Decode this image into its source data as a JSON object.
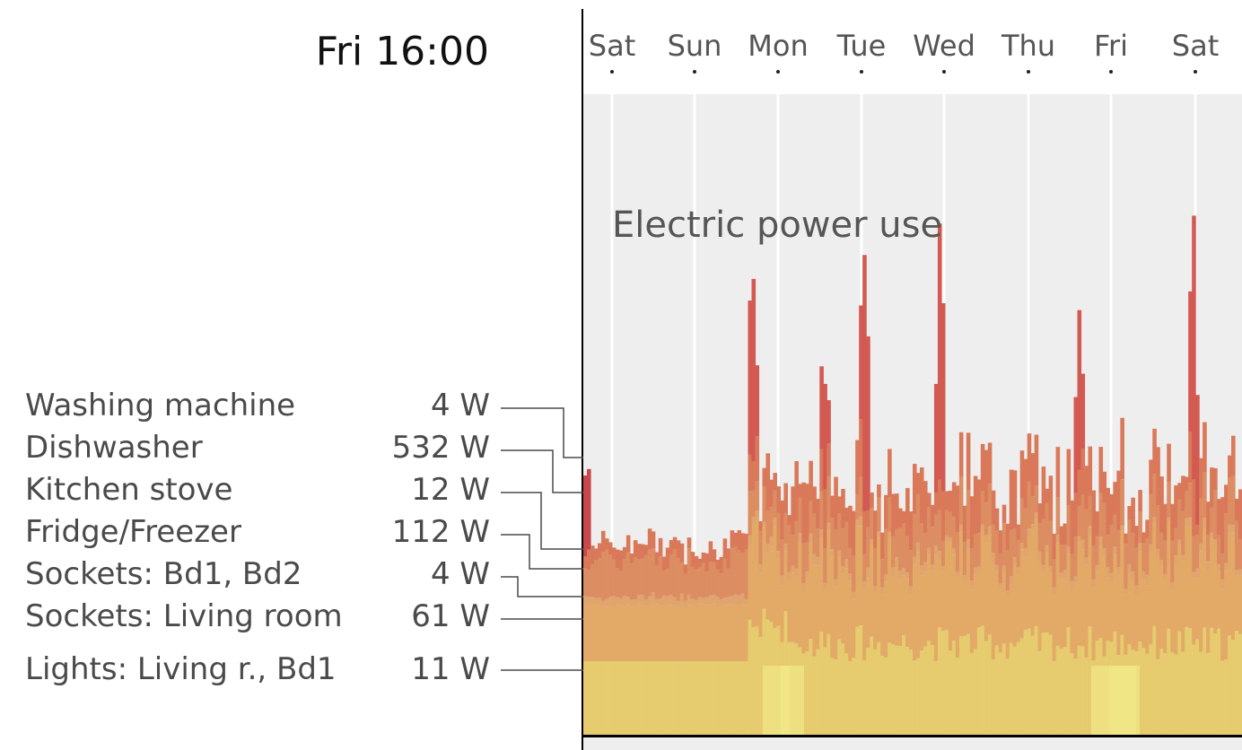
{
  "header": {
    "time_label": "Fri 16:00"
  },
  "chart_data": {
    "type": "area",
    "title": "Electric power use",
    "unit": "W",
    "x_ticks": [
      "Sat",
      "Sun",
      "Mon",
      "Tue",
      "Wed",
      "Thu",
      "Fri",
      "Sat"
    ],
    "grid": true,
    "stacked": true,
    "series": [
      {
        "name": "Lights: Living r., Bd1",
        "current": "11 W",
        "color": "#e6cb6f"
      },
      {
        "name": "Sockets: Living room",
        "current": "61 W",
        "color": "#e2aa66"
      },
      {
        "name": "Sockets: Bd1, Bd2",
        "current": "4 W",
        "color": "#e0a46e"
      },
      {
        "name": "Fridge/Freezer",
        "current": "112 W",
        "color": "#dc8d62"
      },
      {
        "name": "Kitchen stove",
        "current": "12 W",
        "color": "#d9795a"
      },
      {
        "name": "Dishwasher",
        "current": "532 W",
        "color": "#d25a52"
      },
      {
        "name": "Washing machine",
        "current": "4 W",
        "color": "#c9484c"
      }
    ]
  },
  "legend": [
    {
      "name": "Washing machine",
      "value": "4 W"
    },
    {
      "name": "Dishwasher",
      "value": "532 W"
    },
    {
      "name": "Kitchen stove",
      "value": "12 W"
    },
    {
      "name": "Fridge/Freezer",
      "value": "112 W"
    },
    {
      "name": "Sockets: Bd1, Bd2",
      "value": "4 W"
    },
    {
      "name": "Sockets: Living room",
      "value": "61 W"
    },
    {
      "name": "Lights: Living r., Bd1",
      "value": "11 W"
    }
  ]
}
